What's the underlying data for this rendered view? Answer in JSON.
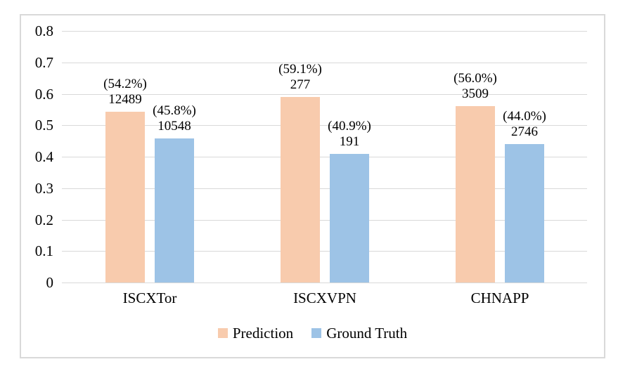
{
  "chart_data": {
    "type": "bar",
    "title": "",
    "xlabel": "",
    "ylabel": "",
    "categories": [
      "ISCXTor",
      "ISCXVPN",
      "CHNAPP"
    ],
    "series": [
      {
        "name": "Prediction",
        "color": "#F8CBAD",
        "values": [
          0.542,
          0.591,
          0.56
        ],
        "counts": [
          "12489",
          "277",
          "3509"
        ],
        "percent_labels": [
          "(54.2%)",
          "(59.1%)",
          "(56.0%)"
        ]
      },
      {
        "name": "Ground Truth",
        "color": "#9DC3E6",
        "values": [
          0.458,
          0.409,
          0.44
        ],
        "counts": [
          "10548",
          "191",
          "2746"
        ],
        "percent_labels": [
          "(45.8%)",
          "(40.9%)",
          "(44.0%)"
        ]
      }
    ],
    "ylim": [
      0,
      0.8
    ],
    "ytick_labels": [
      "0.8",
      "0.7",
      "0.6",
      "0.5",
      "0.4",
      "0.3",
      "0.2",
      "0.1",
      "0"
    ],
    "ytick_values": [
      0.8,
      0.7,
      0.6,
      0.5,
      0.4,
      0.3,
      0.2,
      0.1,
      0
    ],
    "grid": true,
    "legend_position": "bottom"
  },
  "style": {
    "bar_prediction_color": "#F8CBAD",
    "bar_ground_truth_color": "#9DC3E6",
    "gridline_color": "#D9D9D9",
    "frame_border_color": "#D9D9D9",
    "text_color": "#000000",
    "background_color": "#FFFFFF"
  }
}
